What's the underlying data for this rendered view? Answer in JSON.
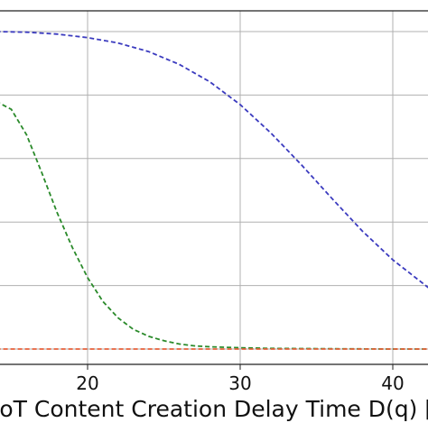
{
  "chart_data": {
    "type": "line",
    "xlabel": "IoT Content Creation Delay Time D(q) [sec]",
    "x_ticks": [
      20,
      30,
      40
    ],
    "x_tick_labels": [
      "20",
      "30",
      "40"
    ],
    "xlim": [
      14,
      42.5
    ],
    "ylim": [
      0,
      1.05
    ],
    "y_ticks": [
      0.0,
      0.2,
      0.4,
      0.6,
      0.8,
      1.0
    ],
    "grid": true,
    "series": [
      {
        "color": "#3b3bbf",
        "style": "dashed",
        "x": [
          14,
          16,
          18,
          20,
          22,
          24,
          26,
          28,
          30,
          32,
          34,
          36,
          38,
          40,
          42.5
        ],
        "y": [
          1.0,
          0.998,
          0.992,
          0.981,
          0.964,
          0.937,
          0.897,
          0.842,
          0.77,
          0.681,
          0.581,
          0.475,
          0.372,
          0.281,
          0.187
        ]
      },
      {
        "color": "#2a8a2a",
        "style": "dashed",
        "x": [
          14,
          15,
          16,
          17,
          18,
          19,
          20,
          21,
          22,
          23,
          24,
          25,
          26,
          27,
          28,
          30,
          32,
          35,
          40,
          42.5
        ],
        "y": [
          0.78,
          0.755,
          0.675,
          0.555,
          0.43,
          0.32,
          0.225,
          0.15,
          0.098,
          0.062,
          0.04,
          0.026,
          0.016,
          0.01,
          0.007,
          0.004,
          0.002,
          0.001,
          0.0,
          0.0
        ]
      },
      {
        "color": "#e8613a",
        "style": "dashed",
        "x": [
          14,
          42.5
        ],
        "y": [
          0.0,
          0.0
        ]
      }
    ]
  }
}
